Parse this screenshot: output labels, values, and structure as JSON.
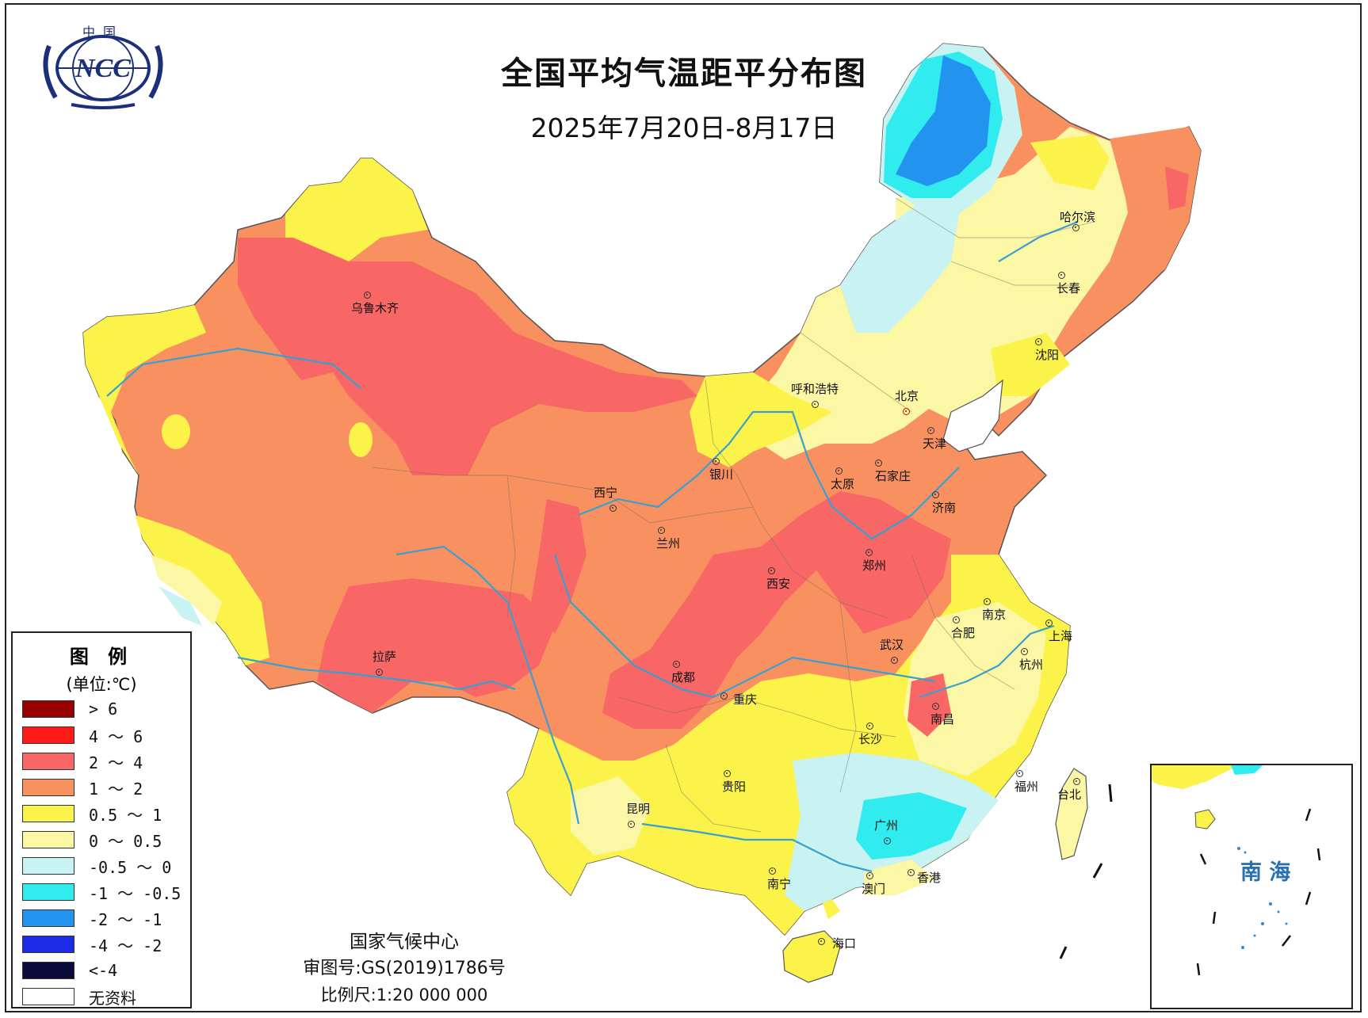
{
  "title": "全国平均气温距平分布图",
  "date_range": "2025年7月20日-8月17日",
  "logo": {
    "top_text": "中国",
    "main_text": "NCC"
  },
  "legend": {
    "heading": "图 例",
    "unit": "(单位:℃)",
    "items": [
      {
        "label": "> 6",
        "color": "#990000"
      },
      {
        "label": "4 ～ 6",
        "color": "#ff1a1a"
      },
      {
        "label": "2 ～ 4",
        "color": "#f86666"
      },
      {
        "label": "1 ～ 2",
        "color": "#f99060"
      },
      {
        "label": "0.5 ～ 1",
        "color": "#fbf34a"
      },
      {
        "label": "0 ～ 0.5",
        "color": "#fbf7a5"
      },
      {
        "label": "-0.5 ～ 0",
        "color": "#c9f2f3"
      },
      {
        "label": "-1 ～ -0.5",
        "color": "#30ecef"
      },
      {
        "label": "-2 ～ -1",
        "color": "#2294f0"
      },
      {
        "label": "-4 ～ -2",
        "color": "#1c2ae6"
      },
      {
        "label": "<-4",
        "color": "#0b0b3c"
      },
      {
        "label": "无资料",
        "color": "#ffffff"
      }
    ]
  },
  "credits": {
    "center": "国家气候中心",
    "approval": "审图号:GS(2019)1786号",
    "scale": "比例尺:1:20 000 000"
  },
  "inset_label": "南 海",
  "cities": [
    {
      "name": "乌鲁木齐"
    },
    {
      "name": "哈尔滨"
    },
    {
      "name": "长春"
    },
    {
      "name": "沈阳"
    },
    {
      "name": "呼和浩特"
    },
    {
      "name": "北京"
    },
    {
      "name": "天津"
    },
    {
      "name": "银川"
    },
    {
      "name": "太原"
    },
    {
      "name": "石家庄"
    },
    {
      "name": "西宁"
    },
    {
      "name": "济南"
    },
    {
      "name": "兰州"
    },
    {
      "name": "郑州"
    },
    {
      "name": "西安"
    },
    {
      "name": "南京"
    },
    {
      "name": "合肥"
    },
    {
      "name": "上海"
    },
    {
      "name": "拉萨"
    },
    {
      "name": "武汉"
    },
    {
      "name": "杭州"
    },
    {
      "name": "成都"
    },
    {
      "name": "重庆"
    },
    {
      "name": "南昌"
    },
    {
      "name": "长沙"
    },
    {
      "name": "贵阳"
    },
    {
      "name": "福州"
    },
    {
      "name": "台北"
    },
    {
      "name": "昆明"
    },
    {
      "name": "广州"
    },
    {
      "name": "南宁"
    },
    {
      "name": "澳门"
    },
    {
      "name": "香港"
    },
    {
      "name": "海口"
    }
  ]
}
